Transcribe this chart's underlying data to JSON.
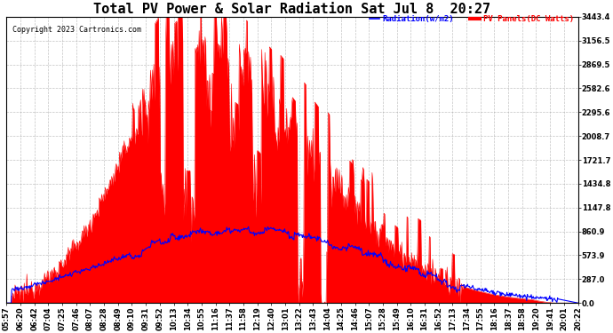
{
  "title": "Total PV Power & Solar Radiation Sat Jul 8  20:27",
  "copyright": "Copyright 2023 Cartronics.com",
  "legend_radiation": "Radiation(w/m2)",
  "legend_panels": "PV Panels(DC Watts)",
  "ylabel_right_values": [
    0.0,
    287.0,
    573.9,
    860.9,
    1147.8,
    1434.8,
    1721.7,
    2008.7,
    2295.6,
    2582.6,
    2869.5,
    3156.5,
    3443.4
  ],
  "ymax": 3443.4,
  "ymin": 0.0,
  "background_color": "#ffffff",
  "plot_bg_color": "#ffffff",
  "grid_color": "#aaaaaa",
  "title_fontsize": 11,
  "tick_fontsize": 6,
  "radiation_color": "#0000ff",
  "pv_color": "#ff0000",
  "pv_fill_color": "#ff0000",
  "x_labels": [
    "05:57",
    "06:20",
    "06:42",
    "07:04",
    "07:25",
    "07:46",
    "08:07",
    "08:28",
    "08:49",
    "09:10",
    "09:31",
    "09:52",
    "10:13",
    "10:34",
    "10:55",
    "11:16",
    "11:37",
    "11:58",
    "12:19",
    "12:40",
    "13:01",
    "13:22",
    "13:43",
    "14:04",
    "14:25",
    "14:46",
    "15:07",
    "15:28",
    "15:49",
    "16:10",
    "16:31",
    "16:52",
    "17:13",
    "17:34",
    "17:55",
    "18:16",
    "18:37",
    "18:58",
    "19:20",
    "19:41",
    "20:01",
    "20:22"
  ]
}
